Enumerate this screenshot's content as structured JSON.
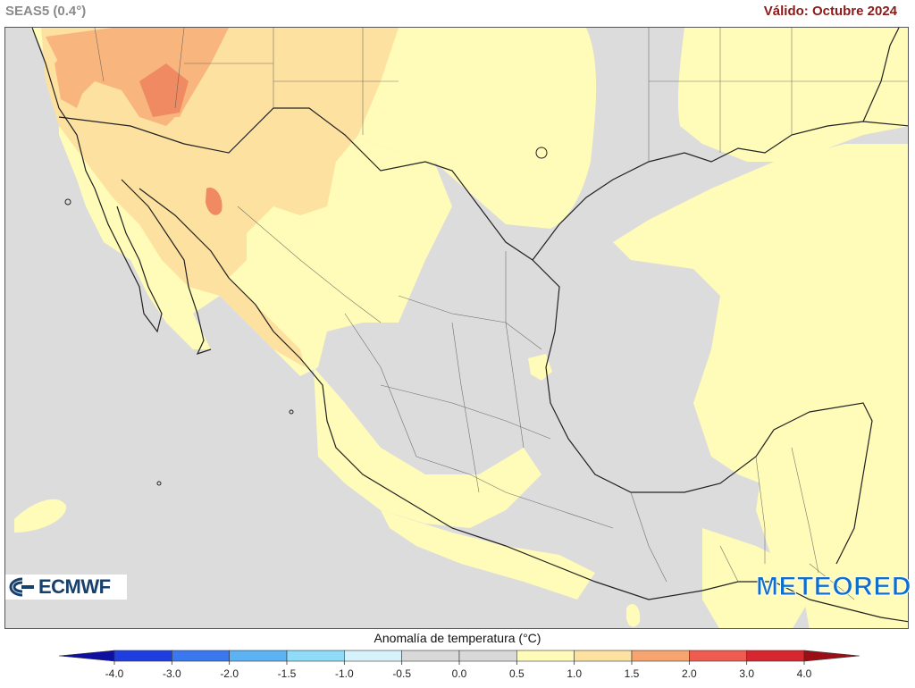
{
  "header": {
    "model": "SEAS5 (0.4°)",
    "valid": "Válido: Octubre 2024"
  },
  "logos": {
    "left": "ECMWF",
    "right": "METEORED"
  },
  "legend": {
    "title": "Anomalía de temperatura (°C)",
    "ticks": [
      "-4.0",
      "-3.0",
      "-2.0",
      "-1.5",
      "-1.0",
      "-0.5",
      "0.0",
      "0.5",
      "1.0",
      "1.5",
      "2.0",
      "3.0",
      "4.0"
    ],
    "colors": {
      "below": "#0f0fa0",
      "bins": [
        "#1f3ee0",
        "#3a78ef",
        "#5cb3f3",
        "#8fdcf8",
        "#d6f3fb",
        "#d9d9d9",
        "#d9d9d9",
        "#fffbb8",
        "#fde1a0",
        "#f8a46e",
        "#ee5c4f",
        "#d62630"
      ],
      "above": "#9a0e16"
    }
  },
  "map_colors": {
    "neutral": "#dcdcdc",
    "warm_05": "#fffbb8",
    "warm_10": "#fde1a0",
    "warm_15": "#f8b67e",
    "warm_20": "#f08a62",
    "border": "#222222"
  }
}
